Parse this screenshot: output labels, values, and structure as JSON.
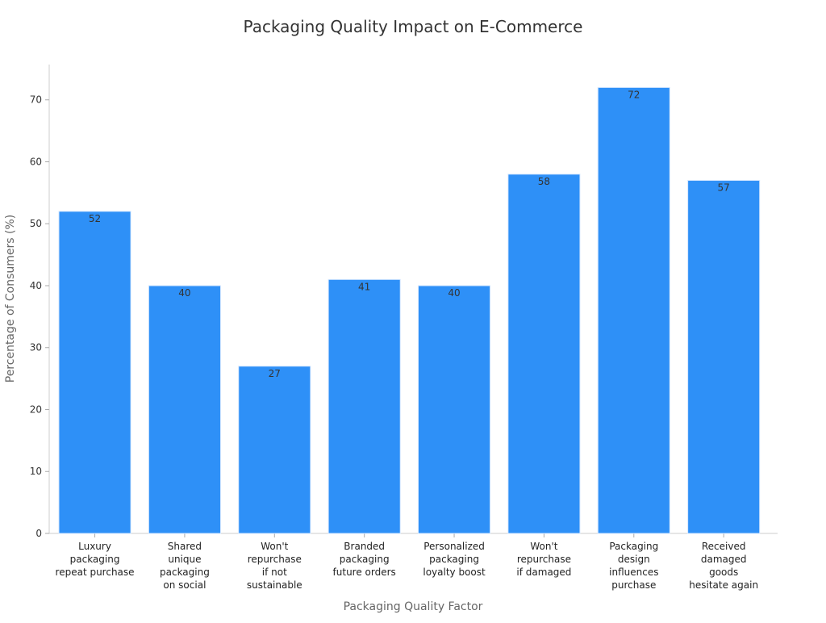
{
  "chart_data": {
    "type": "bar",
    "title": "Packaging Quality Impact on E-Commerce",
    "xlabel": "Packaging Quality Factor",
    "ylabel": "Percentage of Consumers (%)",
    "categories": [
      [
        "Luxury",
        "packaging",
        "repeat purchase"
      ],
      [
        "Shared",
        "unique",
        "packaging",
        "on social"
      ],
      [
        "Won't",
        "repurchase",
        "if not",
        "sustainable"
      ],
      [
        "Branded",
        "packaging",
        "future orders"
      ],
      [
        "Personalized",
        "packaging",
        "loyalty boost"
      ],
      [
        "Won't",
        "repurchase",
        "if damaged"
      ],
      [
        "Packaging",
        "design",
        "influences",
        "purchase"
      ],
      [
        "Received",
        "damaged",
        "goods",
        "hesitate again"
      ]
    ],
    "values": [
      52,
      40,
      27,
      41,
      40,
      58,
      72,
      57
    ],
    "yticks": [
      0,
      10,
      20,
      30,
      40,
      50,
      60,
      70
    ],
    "ylim": [
      0,
      75.7
    ],
    "grid": false,
    "bar_color": "#2e90f7",
    "bar_edge_color": "#d6e8ff"
  }
}
